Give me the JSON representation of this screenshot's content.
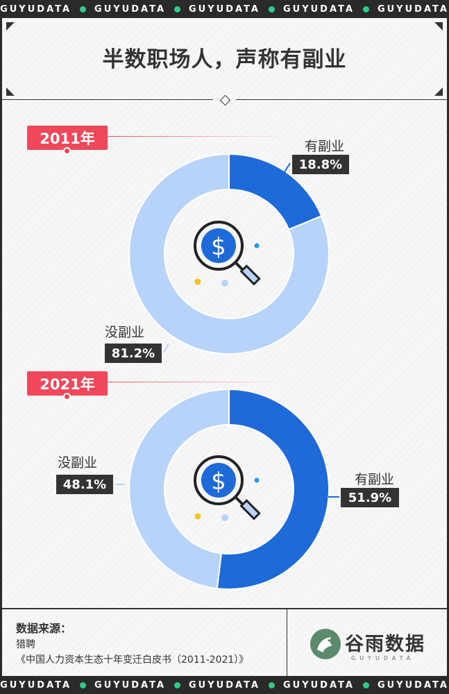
{
  "ticker": {
    "items": [
      "GUYUDATA",
      "GUYUDATA",
      "GUYUDATA",
      "GUYUDATA",
      "GUYUDATA"
    ]
  },
  "title": "半数职场人，声称有副业",
  "chart_data": [
    {
      "type": "pie",
      "year": "2011年",
      "slices": [
        {
          "label": "有副业",
          "value": 18.8,
          "value_label": "18.8%",
          "color": "#1d6ad8"
        },
        {
          "label": "没副业",
          "value": 81.2,
          "value_label": "81.2%",
          "color": "#b8d3f9"
        }
      ]
    },
    {
      "type": "pie",
      "year": "2021年",
      "slices": [
        {
          "label": "有副业",
          "value": 51.9,
          "value_label": "51.9%",
          "color": "#1d6ad8"
        },
        {
          "label": "没副业",
          "value": 48.1,
          "value_label": "48.1%",
          "color": "#b8d3f9"
        }
      ]
    }
  ],
  "source": {
    "title": "数据来源：",
    "lines": [
      "猎聘",
      "《中国人力资本生态十年变迁白皮书（2011-2021）》"
    ]
  },
  "logo": {
    "name": "谷雨数据",
    "sub": "GUYUDATA",
    "icon": "bird-logo-icon"
  },
  "center_icon": "dollar-magnifier-icon",
  "colors": {
    "accent_red": "#f0485a",
    "dark": "#333333",
    "blue_dark": "#1d6ad8",
    "blue_light": "#b8d3f9",
    "ticker_dot": "#2ecc8a"
  }
}
